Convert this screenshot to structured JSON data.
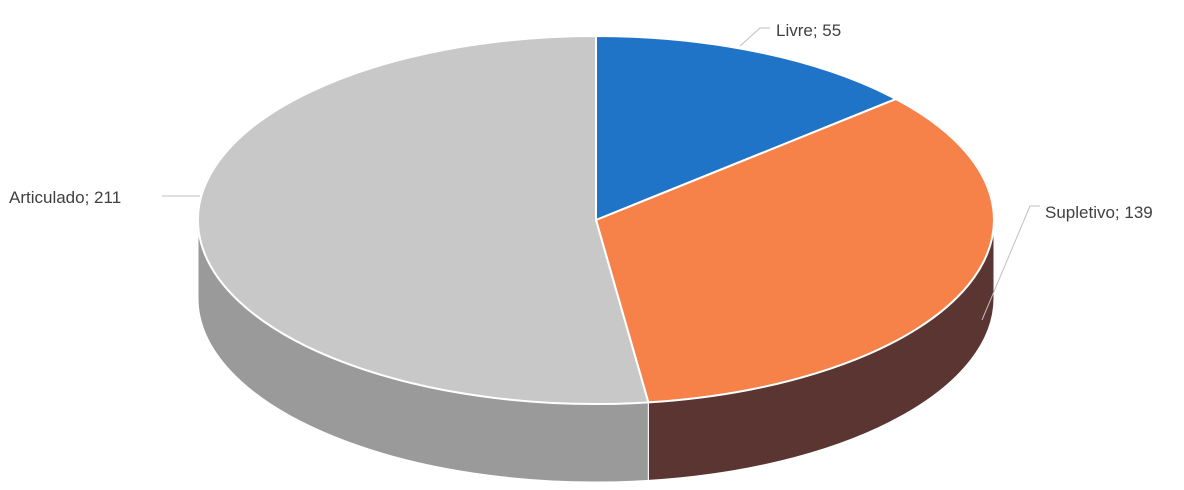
{
  "chart_data": {
    "type": "pie",
    "style": "3d",
    "categories": [
      "Livre",
      "Supletivo",
      "Articulado"
    ],
    "values": [
      55,
      139,
      211
    ],
    "colors": [
      "#1f74c8",
      "#f6824a",
      "#c8c8c8"
    ],
    "side_colors": [
      "#124a82",
      "#5a3531",
      "#9a9a9a"
    ],
    "data_labels": [
      "Livre; 55",
      "Supletivo; 139",
      "Articulado; 211"
    ],
    "title": "",
    "legend": "none"
  }
}
